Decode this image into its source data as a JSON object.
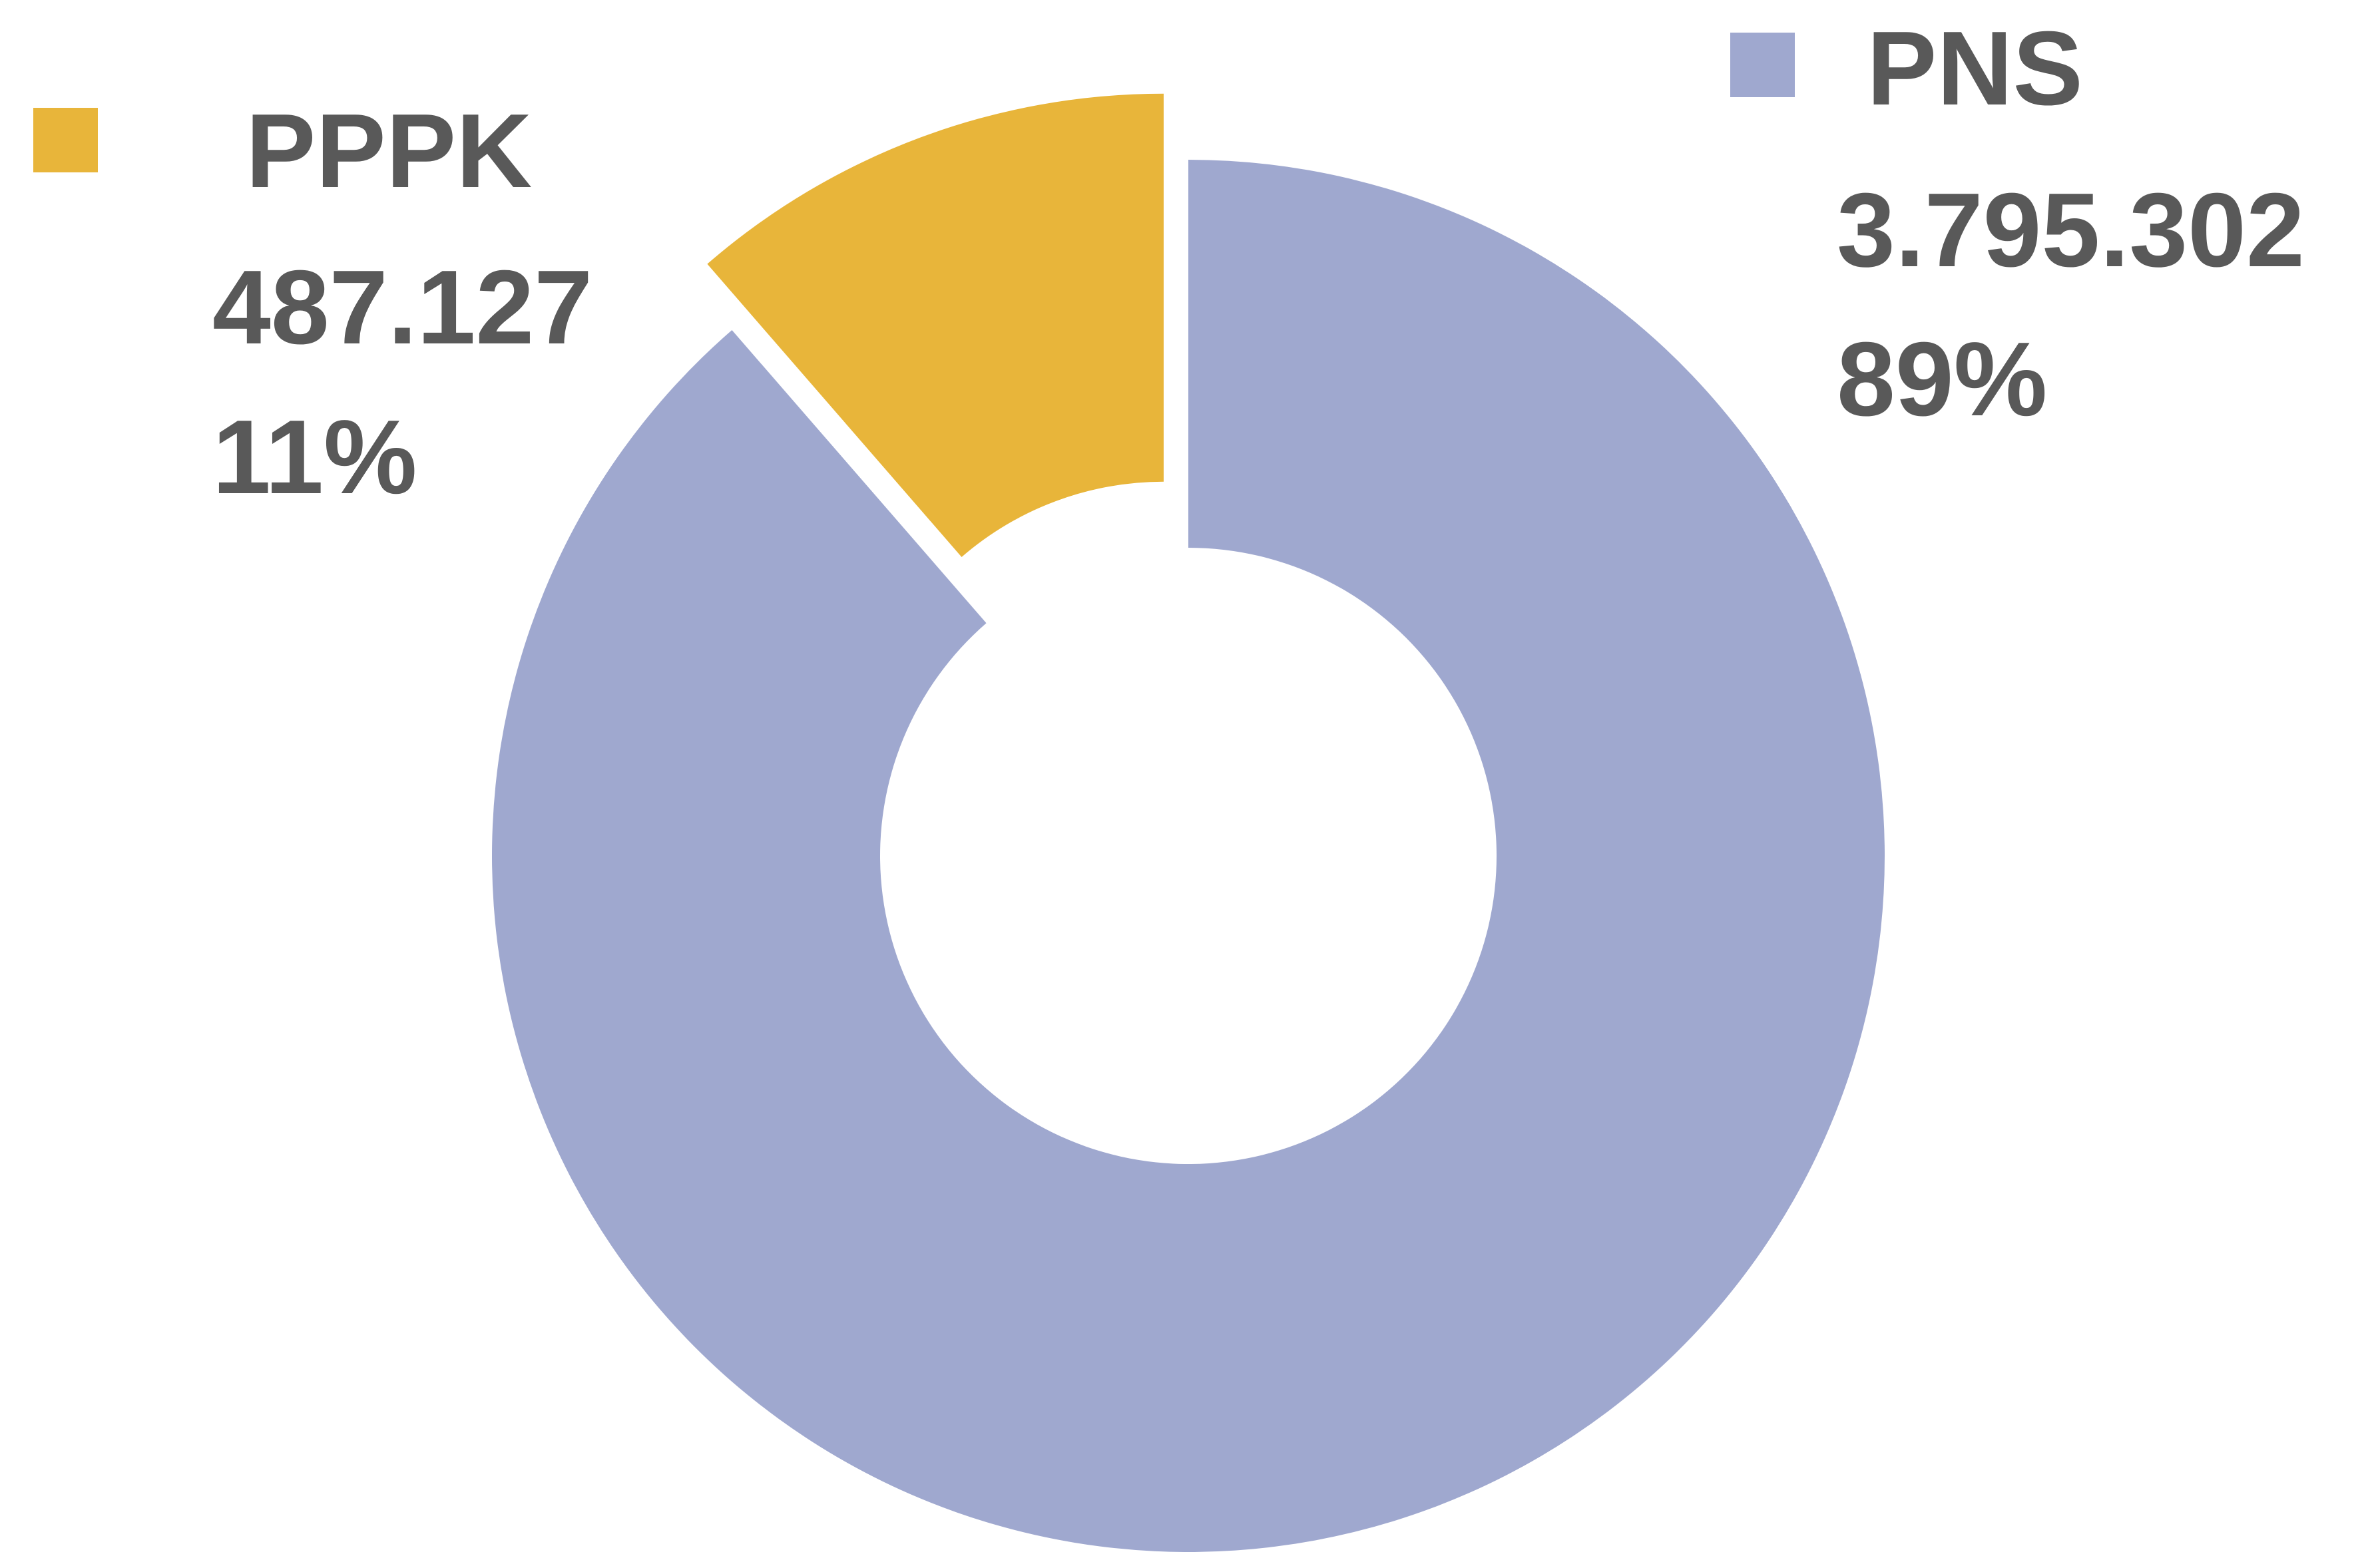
{
  "chart_data": {
    "type": "donut",
    "categories": [
      "PNS",
      "PPPK"
    ],
    "values": [
      3795302,
      487127
    ],
    "value_labels": [
      "3.795.302",
      "487.127"
    ],
    "percent_labels": [
      "89%",
      "11%"
    ],
    "colors": [
      "#9fa8cf",
      "#e8b53a"
    ],
    "legend": true
  }
}
